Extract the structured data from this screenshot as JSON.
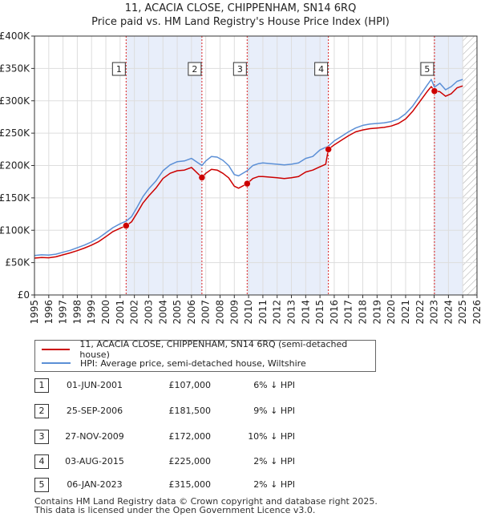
{
  "title_line1": "11, ACACIA CLOSE, CHIPPENHAM, SN14 6RQ",
  "title_line2": "Price paid vs. HM Land Registry's House Price Index (HPI)",
  "legend": {
    "property_label": "11, ACACIA CLOSE, CHIPPENHAM, SN14 6RQ (semi-detached house)",
    "hpi_label": "HPI: Average price, semi-detached house, Wiltshire"
  },
  "colors": {
    "property_line": "#cc0000",
    "hpi_line": "#5b8fd6",
    "shade": "#e8eefa",
    "vline": "#dd2222",
    "hatch": "#b0b0b0"
  },
  "sales": [
    {
      "num": "1",
      "date": "01-JUN-2001",
      "price": "£107,000",
      "delta": "6% ↓ HPI"
    },
    {
      "num": "2",
      "date": "25-SEP-2006",
      "price": "£181,500",
      "delta": "9% ↓ HPI"
    },
    {
      "num": "3",
      "date": "27-NOV-2009",
      "price": "£172,000",
      "delta": "10% ↓ HPI"
    },
    {
      "num": "4",
      "date": "03-AUG-2015",
      "price": "£225,000",
      "delta": "2% ↓ HPI"
    },
    {
      "num": "5",
      "date": "06-JAN-2023",
      "price": "£315,000",
      "delta": "2% ↓ HPI"
    }
  ],
  "footer_line1": "Contains HM Land Registry data © Crown copyright and database right 2025.",
  "footer_line2": "This data is licensed under the Open Government Licence v3.0.",
  "chart_data": {
    "type": "line",
    "title": "11, ACACIA CLOSE, CHIPPENHAM, SN14 6RQ — Price paid vs. HM Land Registry's House Price Index (HPI)",
    "xlim": [
      1995,
      2026
    ],
    "ylim": [
      0,
      400000
    ],
    "x_ticks": [
      1995,
      1996,
      1997,
      1998,
      1999,
      2000,
      2001,
      2002,
      2003,
      2004,
      2005,
      2006,
      2007,
      2008,
      2009,
      2010,
      2011,
      2012,
      2013,
      2014,
      2015,
      2016,
      2017,
      2018,
      2019,
      2020,
      2021,
      2022,
      2023,
      2024,
      2025,
      2026
    ],
    "y_ticks": [
      0,
      50000,
      100000,
      150000,
      200000,
      250000,
      300000,
      350000,
      400000
    ],
    "y_tick_labels": [
      "£0",
      "£50K",
      "£100K",
      "£150K",
      "£200K",
      "£250K",
      "£300K",
      "£350K",
      "£400K"
    ],
    "data_end": 2025.0,
    "grid": true,
    "shaded_ranges": [
      [
        2001.42,
        2006.73
      ],
      [
        2009.9,
        2015.59
      ],
      [
        2023.02,
        2025.0
      ]
    ],
    "sale_points": [
      {
        "num": "1",
        "x": 2001.42,
        "y": 107000
      },
      {
        "num": "2",
        "x": 2006.73,
        "y": 181500
      },
      {
        "num": "3",
        "x": 2009.9,
        "y": 172000
      },
      {
        "num": "4",
        "x": 2015.59,
        "y": 225000
      },
      {
        "num": "5",
        "x": 2023.02,
        "y": 315000
      }
    ],
    "series": [
      {
        "name": "HPI: Average price, semi-detached house, Wiltshire",
        "x": [
          1995.0,
          1995.5,
          1996.0,
          1996.5,
          1997.0,
          1997.5,
          1998.0,
          1998.5,
          1999.0,
          1999.5,
          2000.0,
          2000.5,
          2001.0,
          2001.42,
          2001.8,
          2002.2,
          2002.6,
          2003.0,
          2003.5,
          2004.0,
          2004.5,
          2005.0,
          2005.5,
          2006.0,
          2006.73,
          2007.0,
          2007.4,
          2007.8,
          2008.2,
          2008.6,
          2009.0,
          2009.3,
          2009.9,
          2010.3,
          2010.7,
          2011.0,
          2011.5,
          2012.0,
          2012.5,
          2013.0,
          2013.5,
          2014.0,
          2014.5,
          2015.0,
          2015.59,
          2016.0,
          2016.5,
          2017.0,
          2017.5,
          2018.0,
          2018.5,
          2019.0,
          2019.5,
          2020.0,
          2020.5,
          2021.0,
          2021.5,
          2022.0,
          2022.5,
          2022.8,
          2023.02,
          2023.4,
          2023.8,
          2024.2,
          2024.6,
          2025.0
        ],
        "y": [
          61000,
          62000,
          61500,
          63000,
          66000,
          69000,
          73000,
          77000,
          82000,
          88000,
          96000,
          104000,
          110000,
          114000,
          121000,
          136000,
          152000,
          164000,
          176000,
          192000,
          201000,
          206000,
          207000,
          211000,
          200000,
          207000,
          214000,
          213000,
          208000,
          200000,
          186000,
          184000,
          192000,
          200000,
          203000,
          204000,
          203000,
          202000,
          201000,
          202000,
          204000,
          211000,
          214000,
          224000,
          230000,
          238000,
          245000,
          252000,
          258000,
          262000,
          264000,
          265000,
          266000,
          268000,
          272000,
          280000,
          292000,
          308000,
          324000,
          333000,
          321000,
          327000,
          317000,
          322000,
          330000,
          333000
        ]
      },
      {
        "name": "11, ACACIA CLOSE, CHIPPENHAM, SN14 6RQ (semi-detached house)",
        "x": [
          1995.0,
          1995.5,
          1996.0,
          1996.5,
          1997.0,
          1997.5,
          1998.0,
          1998.5,
          1999.0,
          1999.5,
          2000.0,
          2000.5,
          2001.0,
          2001.42,
          2001.8,
          2002.2,
          2002.6,
          2003.0,
          2003.5,
          2004.0,
          2004.5,
          2005.0,
          2005.5,
          2006.0,
          2006.73,
          2007.0,
          2007.4,
          2007.8,
          2008.2,
          2008.6,
          2009.0,
          2009.3,
          2009.9,
          2010.3,
          2010.7,
          2011.0,
          2011.5,
          2012.0,
          2012.5,
          2013.0,
          2013.5,
          2014.0,
          2014.5,
          2015.0,
          2015.4,
          2015.59,
          2016.0,
          2016.5,
          2017.0,
          2017.5,
          2018.0,
          2018.5,
          2019.0,
          2019.5,
          2020.0,
          2020.5,
          2021.0,
          2021.5,
          2022.0,
          2022.5,
          2022.8,
          2023.02,
          2023.4,
          2023.8,
          2024.2,
          2024.6,
          2025.0
        ],
        "y": [
          57000,
          58000,
          57500,
          59000,
          62000,
          65000,
          68500,
          72500,
          77000,
          82500,
          90000,
          98000,
          103000,
          107000,
          113000,
          127000,
          142000,
          153000,
          165000,
          180000,
          188000,
          192000,
          193000,
          197000,
          181500,
          188000,
          194000,
          193000,
          188000,
          181000,
          168000,
          165000,
          172000,
          180000,
          183000,
          183000,
          182000,
          181000,
          180000,
          181000,
          183000,
          190000,
          193000,
          198000,
          202000,
          225000,
          232000,
          239000,
          246000,
          252000,
          255000,
          257000,
          258000,
          259000,
          261000,
          265000,
          272000,
          284000,
          299000,
          314000,
          322000,
          315000,
          314000,
          307000,
          311000,
          320000,
          323000
        ]
      }
    ]
  }
}
